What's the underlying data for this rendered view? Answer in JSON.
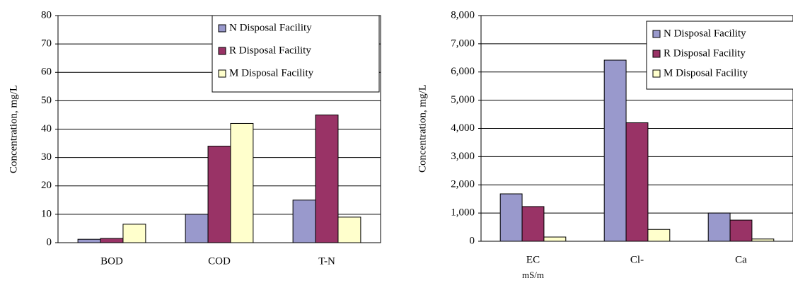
{
  "chart_data": [
    {
      "type": "bar",
      "ylabel": "Concentration, mg/L",
      "categories": [
        "BOD",
        "COD",
        "T-N"
      ],
      "series": [
        {
          "name": "N Disposal Facility",
          "color": "#9999cc",
          "values": [
            1.2,
            10,
            15
          ]
        },
        {
          "name": "R Disposal Facility",
          "color": "#993366",
          "values": [
            1.5,
            34,
            45
          ]
        },
        {
          "name": "M Disposal Facility",
          "color": "#ffffcc",
          "values": [
            6.5,
            42,
            9
          ]
        }
      ],
      "ylim": [
        0,
        80
      ],
      "yticks": [
        0,
        10,
        20,
        30,
        40,
        50,
        60,
        70,
        80
      ],
      "grid": true,
      "legend": "upper right"
    },
    {
      "type": "bar",
      "ylabel": "Concentration, mg/L",
      "categories": [
        "EC",
        "Cl-",
        "Ca"
      ],
      "category_note": "mS/m",
      "series": [
        {
          "name": "N Disposal Facility",
          "color": "#9999cc",
          "values": [
            1680,
            6420,
            1000
          ]
        },
        {
          "name": "R Disposal Facility",
          "color": "#993366",
          "values": [
            1230,
            4200,
            750
          ]
        },
        {
          "name": "M Disposal Facility",
          "color": "#ffffcc",
          "values": [
            150,
            420,
            80
          ]
        }
      ],
      "ylim": [
        0,
        8000
      ],
      "yticks": [
        0,
        {
          "value": 1000,
          "label": "1,000"
        },
        {
          "value": 2000,
          "label": "2,000"
        },
        {
          "value": 3000,
          "label": "3,000"
        },
        {
          "value": 4000,
          "label": "4,000"
        },
        {
          "value": 5000,
          "label": "5,000"
        },
        {
          "value": 6000,
          "label": "6,000"
        },
        {
          "value": 7000,
          "label": "7,000"
        },
        {
          "value": 8000,
          "label": "8,000"
        }
      ],
      "grid": true,
      "legend": "upper right"
    }
  ]
}
